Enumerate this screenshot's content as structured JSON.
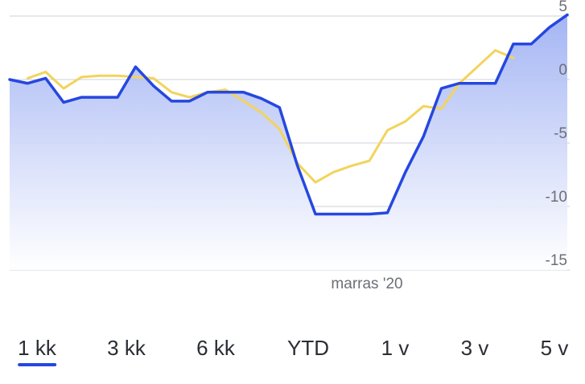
{
  "chart_data": {
    "type": "line",
    "y_ticks": [
      5,
      0,
      -5,
      -10,
      -15
    ],
    "ylim": [
      -15,
      5
    ],
    "x_tick_label": "marras '20",
    "grid": true,
    "colors": {
      "primary": "#2547e0",
      "secondary": "#f2d45c",
      "area_top": "#a9b9f5",
      "area_bottom": "#ffffff",
      "grid": "#dfe1e5"
    },
    "series": [
      {
        "color": "#2547e0",
        "values": [
          0.0,
          -0.3,
          0.1,
          -1.8,
          -1.4,
          -1.4,
          -1.4,
          1.0,
          -0.5,
          -1.7,
          -1.7,
          -1.0,
          -1.0,
          -1.0,
          -1.5,
          -2.2,
          -6.8,
          -10.6,
          -10.6,
          -10.6,
          -10.6,
          -10.5,
          -7.3,
          -4.5,
          -0.7,
          -0.3,
          -0.3,
          -0.3,
          2.8,
          2.8,
          4.1,
          5.1
        ]
      },
      {
        "color": "#f2d45c",
        "values": [
          null,
          0.1,
          0.6,
          -0.7,
          0.2,
          0.3,
          0.3,
          0.2,
          0.1,
          -1.0,
          -1.4,
          -1.0,
          -0.8,
          -1.7,
          -2.6,
          -3.9,
          -6.6,
          -8.1,
          -7.3,
          -6.8,
          -6.4,
          -4.0,
          -3.3,
          -2.1,
          -2.3,
          -0.3,
          1.0,
          2.3,
          1.7,
          null,
          null,
          null
        ]
      }
    ]
  },
  "tabs": [
    {
      "label": "1 kk",
      "active": true
    },
    {
      "label": "3 kk",
      "active": false
    },
    {
      "label": "6 kk",
      "active": false
    },
    {
      "label": "YTD",
      "active": false
    },
    {
      "label": "1 v",
      "active": false
    },
    {
      "label": "3 v",
      "active": false
    },
    {
      "label": "5 v",
      "active": false
    }
  ]
}
